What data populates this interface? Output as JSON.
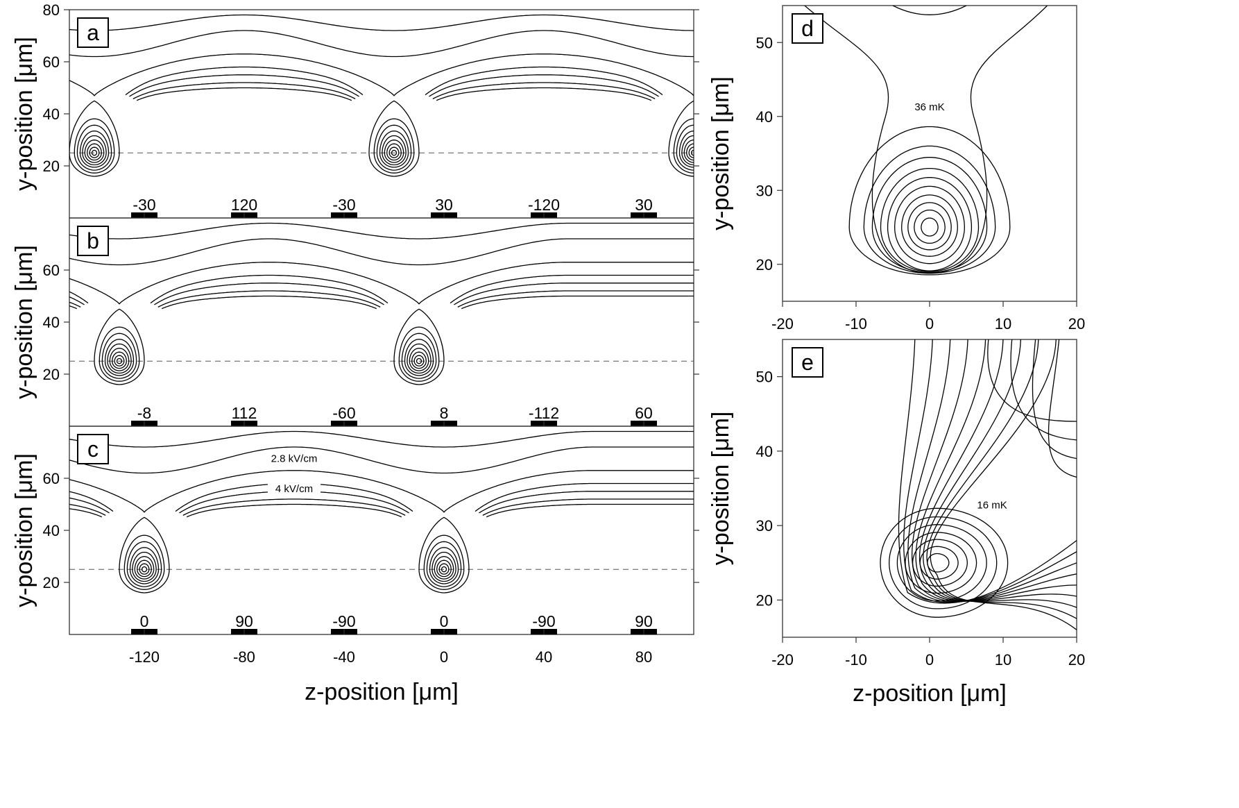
{
  "chart_data": [
    {
      "type": "contour",
      "panel": "a",
      "xlim": [
        -150,
        100
      ],
      "ylim": [
        0,
        80
      ],
      "yticks": [
        20,
        40,
        60,
        80
      ],
      "ylabel": "y-position [μm]",
      "xlabel": "",
      "trap_height": 25,
      "minima_z": [
        -140,
        -20,
        100
      ],
      "saddle_top_y": 47,
      "electrodes": [
        {
          "z": -120,
          "label": "-30"
        },
        {
          "z": -80,
          "label": "120"
        },
        {
          "z": -40,
          "label": "-30"
        },
        {
          "z": 0,
          "label": "30"
        },
        {
          "z": 40,
          "label": "-120"
        },
        {
          "z": 80,
          "label": "30"
        }
      ]
    },
    {
      "type": "contour",
      "panel": "b",
      "xlim": [
        -150,
        100
      ],
      "ylim": [
        0,
        80
      ],
      "yticks": [
        20,
        40,
        60
      ],
      "ylabel": "y-position [μm]",
      "xlabel": "",
      "trap_height": 25,
      "minima_z": [
        -130,
        -10
      ],
      "saddle_top_y": 47,
      "electrodes": [
        {
          "z": -120,
          "label": "-8"
        },
        {
          "z": -80,
          "label": "112"
        },
        {
          "z": -40,
          "label": "-60"
        },
        {
          "z": 0,
          "label": "8"
        },
        {
          "z": 40,
          "label": "-112"
        },
        {
          "z": 80,
          "label": "60"
        }
      ]
    },
    {
      "type": "contour",
      "panel": "c",
      "xlim": [
        -150,
        100
      ],
      "ylim": [
        0,
        80
      ],
      "xticks": [
        -120,
        -80,
        -40,
        0,
        40,
        80
      ],
      "yticks": [
        20,
        40,
        60
      ],
      "ylabel": "y-position [μm]",
      "xlabel": "z-position [μm]",
      "trap_height": 25,
      "minima_z": [
        -120,
        0
      ],
      "saddle_top_y": 47,
      "annotations": [
        "2.8 kV/cm",
        "4 kV/cm"
      ],
      "electrodes": [
        {
          "z": -120,
          "label": "0"
        },
        {
          "z": -80,
          "label": "90"
        },
        {
          "z": -40,
          "label": "-90"
        },
        {
          "z": 0,
          "label": "0"
        },
        {
          "z": 40,
          "label": "-90"
        },
        {
          "z": 80,
          "label": "90"
        }
      ]
    },
    {
      "type": "contour",
      "panel": "d",
      "xlim": [
        -20,
        20
      ],
      "ylim": [
        15,
        55
      ],
      "xticks": [
        -20,
        -10,
        0,
        10,
        20
      ],
      "yticks": [
        20,
        30,
        40,
        50
      ],
      "ylabel": "y-position [μm]",
      "xlabel": "",
      "center": [
        0,
        25
      ],
      "annotation": "36 mK"
    },
    {
      "type": "contour",
      "panel": "e",
      "xlim": [
        -20,
        20
      ],
      "ylim": [
        15,
        55
      ],
      "xticks": [
        -20,
        -10,
        0,
        10,
        20
      ],
      "yticks": [
        20,
        30,
        40,
        50
      ],
      "ylabel": "y-position [μm]",
      "xlabel": "z-position [μm]",
      "center": [
        1,
        25
      ],
      "annotation": "16 mK"
    }
  ]
}
